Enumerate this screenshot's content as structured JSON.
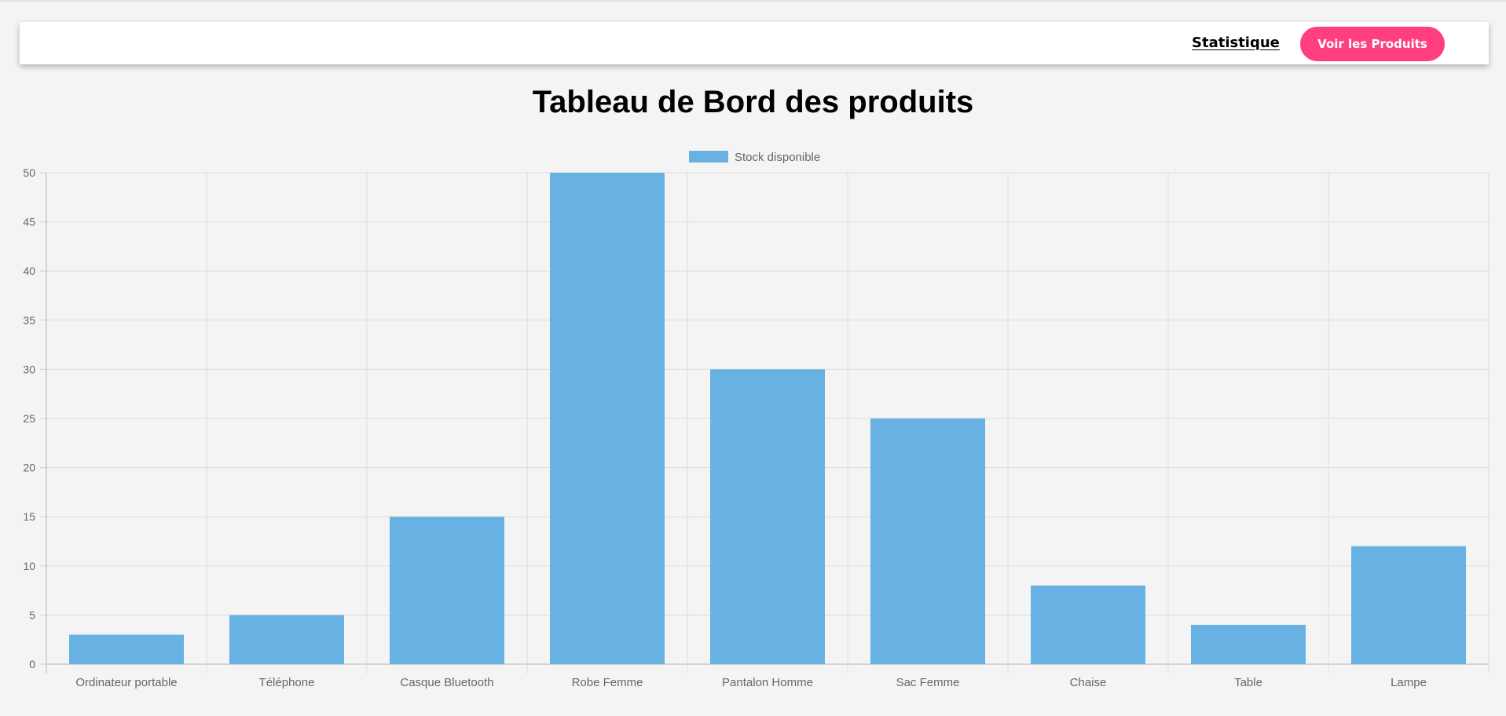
{
  "navbar": {
    "link_label": "Statistique",
    "button_label": "Voir les Produits",
    "button_color": "#ff3f7f"
  },
  "page": {
    "title": "Tableau de Bord des produits"
  },
  "chart_data": {
    "type": "bar",
    "categories": [
      "Ordinateur portable",
      "Téléphone",
      "Casque Bluetooth",
      "Robe Femme",
      "Pantalon Homme",
      "Sac Femme",
      "Chaise",
      "Table",
      "Lampe"
    ],
    "series": [
      {
        "name": "Stock disponible",
        "values": [
          3,
          5,
          15,
          50,
          30,
          25,
          8,
          4,
          12
        ],
        "color": "#68b1e3"
      }
    ],
    "ylim": [
      0,
      50
    ],
    "yticks": [
      0,
      5,
      10,
      15,
      20,
      25,
      30,
      35,
      40,
      45,
      50
    ],
    "grid": true,
    "legend_position": "top-center",
    "title": "",
    "xlabel": "",
    "ylabel": ""
  }
}
